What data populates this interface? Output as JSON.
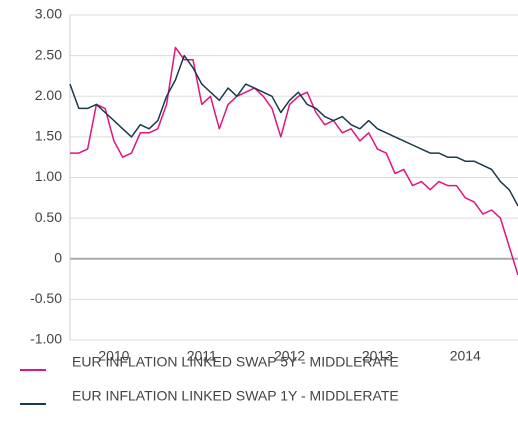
{
  "chart_data": {
    "type": "line",
    "x": [
      2009.5,
      2009.6,
      2009.7,
      2009.8,
      2009.9,
      2010.0,
      2010.1,
      2010.2,
      2010.3,
      2010.4,
      2010.5,
      2010.6,
      2010.7,
      2010.8,
      2010.9,
      2011.0,
      2011.1,
      2011.2,
      2011.3,
      2011.4,
      2011.5,
      2011.6,
      2011.7,
      2011.8,
      2011.9,
      2012.0,
      2012.1,
      2012.2,
      2012.3,
      2012.4,
      2012.5,
      2012.6,
      2012.7,
      2012.8,
      2012.9,
      2013.0,
      2013.1,
      2013.2,
      2013.3,
      2013.4,
      2013.5,
      2013.6,
      2013.7,
      2013.8,
      2013.9,
      2014.0,
      2014.1,
      2014.2,
      2014.3,
      2014.4,
      2014.5,
      2014.6
    ],
    "series": [
      {
        "name": "EUR INFLATION LINKED SWAP 5Y - MIDDLERATE",
        "color": "#e0157f",
        "values": [
          1.3,
          1.3,
          1.35,
          1.9,
          1.85,
          1.45,
          1.25,
          1.3,
          1.55,
          1.55,
          1.6,
          1.9,
          2.6,
          2.45,
          2.45,
          1.9,
          2.0,
          1.6,
          1.9,
          2.0,
          2.05,
          2.1,
          2.0,
          1.85,
          1.5,
          1.9,
          2.0,
          2.05,
          1.8,
          1.65,
          1.7,
          1.55,
          1.6,
          1.45,
          1.55,
          1.35,
          1.3,
          1.05,
          1.1,
          0.9,
          0.95,
          0.85,
          0.95,
          0.9,
          0.9,
          0.75,
          0.7,
          0.55,
          0.6,
          0.5,
          0.15,
          -0.2
        ]
      },
      {
        "name": "EUR INFLATION LINKED SWAP 1Y - MIDDLERATE",
        "color": "#1b3a4b",
        "values": [
          2.15,
          1.85,
          1.85,
          1.9,
          1.8,
          1.7,
          1.6,
          1.5,
          1.65,
          1.6,
          1.7,
          2.0,
          2.2,
          2.5,
          2.35,
          2.15,
          2.05,
          1.95,
          2.1,
          2.0,
          2.15,
          2.1,
          2.05,
          2.0,
          1.8,
          1.95,
          2.05,
          1.9,
          1.85,
          1.75,
          1.7,
          1.75,
          1.65,
          1.6,
          1.7,
          1.6,
          1.55,
          1.5,
          1.45,
          1.4,
          1.35,
          1.3,
          1.3,
          1.25,
          1.25,
          1.2,
          1.2,
          1.15,
          1.1,
          0.95,
          0.85,
          0.65
        ]
      }
    ],
    "xlim": [
      2009.5,
      2014.6
    ],
    "xticks": [
      2010,
      2011,
      2012,
      2013,
      2014
    ],
    "ylim": [
      -1,
      3
    ],
    "yticks": [
      {
        "value": 3,
        "label": "3.00"
      },
      {
        "value": 2.5,
        "label": "2.50"
      },
      {
        "value": 2,
        "label": "2.00"
      },
      {
        "value": 1.5,
        "label": "1.50"
      },
      {
        "value": 1,
        "label": "1.00"
      },
      {
        "value": 0.5,
        "label": "0.50"
      },
      0,
      {
        "value": -0.5,
        "label": "-0.50"
      },
      {
        "value": -1,
        "label": "-1.00"
      }
    ],
    "grid": true,
    "legend": "bottom"
  }
}
